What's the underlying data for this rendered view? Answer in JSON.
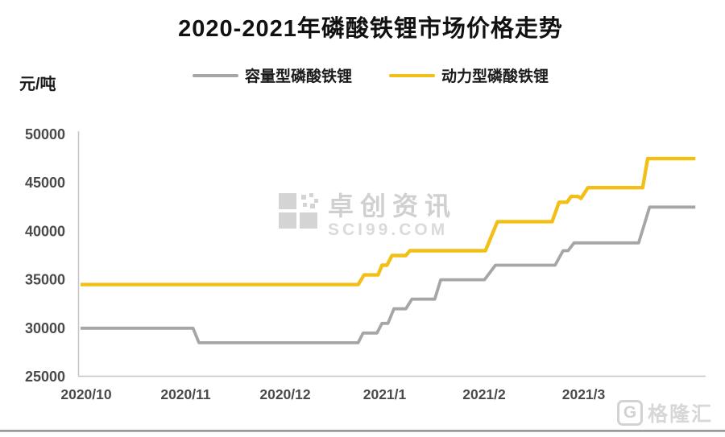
{
  "title": "2020-2021年磷酸铁锂市场价格走势",
  "y_unit": "元/吨",
  "legend": [
    {
      "label": "容量型磷酸铁锂",
      "color": "#a6a6a6"
    },
    {
      "label": "动力型磷酸铁锂",
      "color": "#f2bf17"
    }
  ],
  "watermark": {
    "brand": "卓创资讯",
    "site": "SCI99.COM"
  },
  "footer_logo": {
    "icon": "G",
    "text": "格隆汇"
  },
  "chart_data": {
    "type": "line",
    "title": "2020-2021年磷酸铁锂市场价格走势",
    "xlabel": "",
    "ylabel": "元/吨",
    "ylim": [
      25000,
      50000
    ],
    "y_ticks": [
      50000,
      45000,
      40000,
      35000,
      30000,
      25000
    ],
    "x_tick_labels": [
      "2020/10",
      "2020/11",
      "2020/12",
      "2021/1",
      "2021/2",
      "2021/3"
    ],
    "x_note": "series x values are months after 2020/10/01",
    "grid": false,
    "legend_position": "top",
    "series": [
      {
        "name": "容量型磷酸铁锂",
        "color": "#a6a6a6",
        "points": [
          [
            0.0,
            30000
          ],
          [
            1.13,
            30000
          ],
          [
            1.19,
            28500
          ],
          [
            2.79,
            28500
          ],
          [
            2.84,
            29500
          ],
          [
            2.98,
            29500
          ],
          [
            3.03,
            30500
          ],
          [
            3.09,
            30500
          ],
          [
            3.15,
            32000
          ],
          [
            3.27,
            32000
          ],
          [
            3.33,
            33000
          ],
          [
            3.56,
            33000
          ],
          [
            3.62,
            35000
          ],
          [
            4.06,
            35000
          ],
          [
            4.17,
            36500
          ],
          [
            4.77,
            36500
          ],
          [
            4.85,
            38000
          ],
          [
            4.9,
            38000
          ],
          [
            4.96,
            38800
          ],
          [
            5.61,
            38800
          ],
          [
            5.72,
            42500
          ],
          [
            6.18,
            42500
          ]
        ]
      },
      {
        "name": "动力型磷酸铁锂",
        "color": "#f2bf17",
        "points": [
          [
            0.0,
            34500
          ],
          [
            2.79,
            34500
          ],
          [
            2.85,
            35500
          ],
          [
            2.99,
            35500
          ],
          [
            3.03,
            36500
          ],
          [
            3.08,
            36500
          ],
          [
            3.13,
            37500
          ],
          [
            3.27,
            37500
          ],
          [
            3.31,
            38000
          ],
          [
            4.07,
            38000
          ],
          [
            4.19,
            41000
          ],
          [
            4.74,
            41000
          ],
          [
            4.81,
            43000
          ],
          [
            4.89,
            43000
          ],
          [
            4.93,
            43600
          ],
          [
            5.0,
            43600
          ],
          [
            5.03,
            43400
          ],
          [
            5.1,
            44500
          ],
          [
            5.65,
            44500
          ],
          [
            5.7,
            47500
          ],
          [
            6.18,
            47500
          ]
        ]
      }
    ]
  }
}
